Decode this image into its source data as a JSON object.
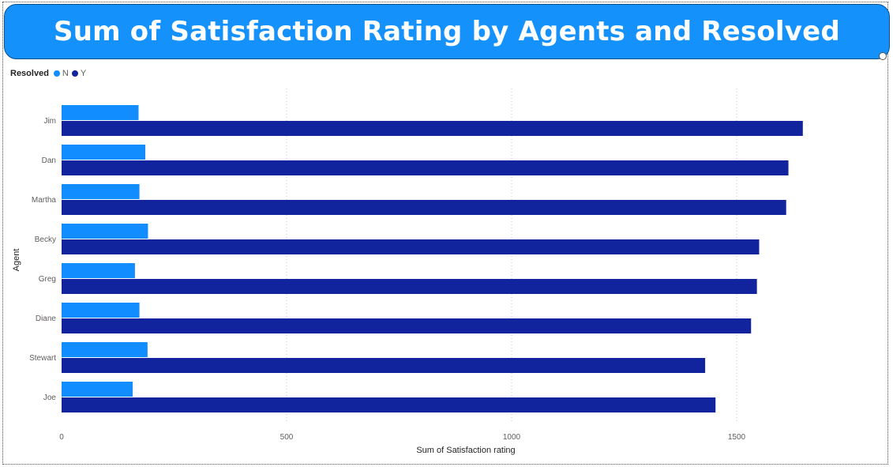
{
  "title": "Sum of Satisfaction Rating by Agents and Resolved",
  "legend": {
    "title": "Resolved",
    "items": [
      {
        "label": "N",
        "color": "#118dff"
      },
      {
        "label": "Y",
        "color": "#12239e"
      }
    ]
  },
  "chart_data": {
    "type": "bar",
    "orientation": "horizontal",
    "title": "Sum of Satisfaction Rating by Agents and Resolved",
    "xlabel": "Sum of Satisfaction rating",
    "ylabel": "Agent",
    "categories": [
      "Jim",
      "Dan",
      "Martha",
      "Becky",
      "Greg",
      "Diane",
      "Stewart",
      "Joe"
    ],
    "series": [
      {
        "name": "N",
        "color": "#118dff",
        "values": [
          171,
          186,
          173,
          192,
          163,
          173,
          191,
          158
        ]
      },
      {
        "name": "Y",
        "color": "#12239e",
        "values": [
          1647,
          1615,
          1610,
          1550,
          1545,
          1532,
          1430,
          1453
        ]
      }
    ],
    "xlim": [
      0,
      1850
    ],
    "xticks": [
      0,
      500,
      1000,
      1500
    ],
    "grid": true,
    "legend_position": "top-left"
  }
}
